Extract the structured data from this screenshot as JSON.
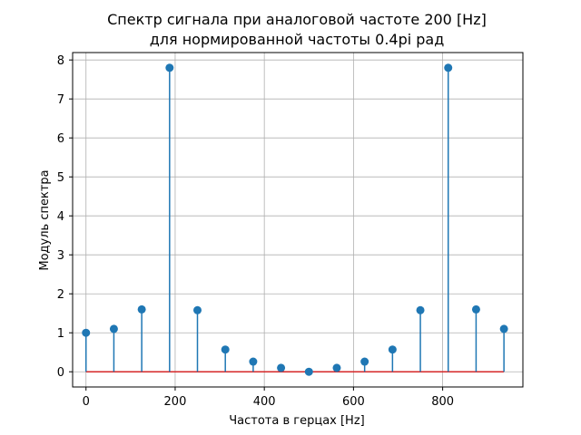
{
  "chart_data": {
    "type": "stem",
    "title": "Спектр сигнала при аналоговой частоте 200 [Hz]",
    "subtitle": "для нормированной частоты 0.4pi рад",
    "xlabel": "Частота в герцах [Hz]",
    "ylabel": "Модуль спектра",
    "xlim": [
      -30,
      980
    ],
    "ylim": [
      -0.39,
      8.19
    ],
    "xticks": [
      0,
      200,
      400,
      600,
      800
    ],
    "yticks": [
      0,
      1,
      2,
      3,
      4,
      5,
      6,
      7,
      8
    ],
    "xtick_labels": [
      "0",
      "200",
      "400",
      "600",
      "800"
    ],
    "ytick_labels": [
      "0",
      "1",
      "2",
      "3",
      "4",
      "5",
      "6",
      "7",
      "8"
    ],
    "grid": true,
    "series": [
      {
        "x": [
          0,
          62.5,
          125,
          187.5,
          250,
          312.5,
          375,
          437.5,
          500,
          562.5,
          625,
          687.5,
          750,
          812.5,
          875,
          937.5
        ],
        "y": [
          1.0,
          1.1,
          1.6,
          7.8,
          1.58,
          0.57,
          0.26,
          0.1,
          0.0,
          0.1,
          0.26,
          0.57,
          1.58,
          7.8,
          1.6,
          1.1
        ]
      }
    ],
    "colors": {
      "stem": "#1f77b4",
      "marker": "#1f77b4",
      "baseline": "#d62728",
      "grid": "#b0b0b0",
      "axis": "#000000"
    }
  }
}
